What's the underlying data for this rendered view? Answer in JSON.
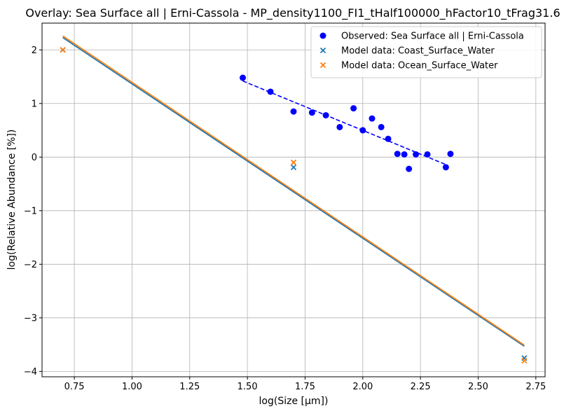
{
  "chart_data": {
    "type": "scatter",
    "title": "Overlay: Sea Surface all | Erni-Cassola - MP_density1100_FI1_tHalf100000_hFactor10_tFrag31.6",
    "xlabel": "log(Size [μm])",
    "ylabel": "log(Relative Abundance [%])",
    "xlim": [
      0.61,
      2.79
    ],
    "ylim": [
      -4.1,
      2.5
    ],
    "xticks": [
      0.75,
      1.0,
      1.25,
      1.5,
      1.75,
      2.0,
      2.25,
      2.5,
      2.75
    ],
    "xtick_labels": [
      "0.75",
      "1.00",
      "1.25",
      "1.50",
      "1.75",
      "2.00",
      "2.25",
      "2.50",
      "2.75"
    ],
    "yticks": [
      -4,
      -3,
      -2,
      -1,
      0,
      1,
      2
    ],
    "ytick_labels": [
      "−4",
      "−3",
      "−2",
      "−1",
      "0",
      "1",
      "2"
    ],
    "grid": true,
    "legend_position": "top-right",
    "series": [
      {
        "name": "Observed: Sea Surface all | Erni-Cassola",
        "kind": "scatter",
        "marker": "circle",
        "color": "#0000ff",
        "x": [
          1.48,
          1.6,
          1.7,
          1.78,
          1.84,
          1.9,
          1.96,
          2.0,
          2.04,
          2.08,
          2.11,
          2.15,
          2.18,
          2.2,
          2.23,
          2.28,
          2.36,
          2.38
        ],
        "y": [
          1.48,
          1.22,
          0.85,
          0.83,
          0.78,
          0.56,
          0.91,
          0.5,
          0.72,
          0.56,
          0.34,
          0.06,
          0.05,
          -0.22,
          0.05,
          0.05,
          -0.19,
          0.06
        ]
      },
      {
        "name": "Observed fit",
        "kind": "line",
        "style": "dashed",
        "color": "#0000ff",
        "x": [
          1.48,
          2.36
        ],
        "y": [
          1.42,
          -0.14
        ]
      },
      {
        "name": "Model data: Coast_Surface_Water",
        "kind": "scatter",
        "marker": "x",
        "color": "#1f77b4",
        "x": [
          0.7,
          1.7,
          2.7
        ],
        "y": [
          2.0,
          -0.19,
          -3.75
        ]
      },
      {
        "name": "Coast fit",
        "kind": "line",
        "style": "solid",
        "color": "#1f77b4",
        "x": [
          0.7,
          2.7
        ],
        "y": [
          2.23,
          -3.53
        ]
      },
      {
        "name": "Model data: Ocean_Surface_Water",
        "kind": "scatter",
        "marker": "x",
        "color": "#ff7f0e",
        "x": [
          0.7,
          1.7,
          2.7
        ],
        "y": [
          2.0,
          -0.1,
          -3.8
        ]
      },
      {
        "name": "Ocean fit",
        "kind": "line",
        "style": "solid",
        "color": "#ff7f0e",
        "x": [
          0.7,
          2.7
        ],
        "y": [
          2.26,
          -3.51
        ]
      }
    ],
    "legend": [
      {
        "label": "Observed: Sea Surface all | Erni-Cassola",
        "marker": "circle",
        "color": "#0000ff"
      },
      {
        "label": "Model data: Coast_Surface_Water",
        "marker": "x",
        "color": "#1f77b4"
      },
      {
        "label": "Model data: Ocean_Surface_Water",
        "marker": "x",
        "color": "#ff7f0e"
      }
    ]
  }
}
